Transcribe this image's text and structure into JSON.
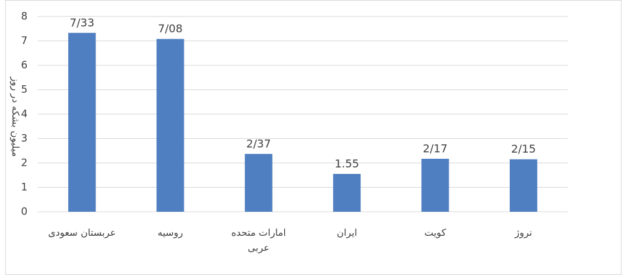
{
  "chart_data": {
    "type": "bar",
    "y_label": "میلیون بشکه در روز",
    "categories": [
      "عربستان سعودی",
      "روسیه",
      "امارات متحده عربی",
      "ایران",
      "کویت",
      "نروژ"
    ],
    "values": [
      7.33,
      7.08,
      2.37,
      1.55,
      2.17,
      2.15
    ],
    "value_labels": [
      "7/33",
      "7/08",
      "2/37",
      "1.55",
      "2/17",
      "2/15"
    ],
    "color": "#4f7fc0",
    "ylim": [
      0,
      8
    ],
    "yticks": [
      0,
      1,
      2,
      3,
      4,
      5,
      6,
      7,
      8
    ],
    "grid": true
  }
}
